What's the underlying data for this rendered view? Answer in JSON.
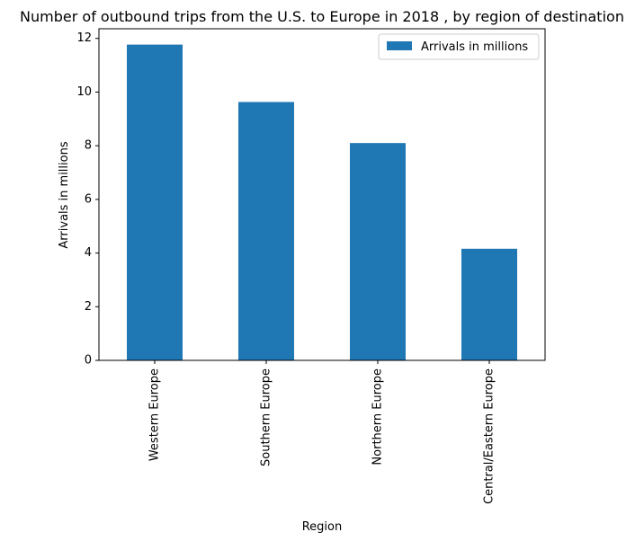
{
  "chart_data": {
    "type": "bar",
    "title": "Number of outbound trips from the U.S. to Europe in 2018 , by region of destination",
    "xlabel": "Region",
    "ylabel": "Arrivals in millions",
    "categories": [
      "Western Europe",
      "Southern Europe",
      "Northern Europe",
      "Central/Eastern Europe"
    ],
    "series": [
      {
        "name": "Arrivals in millions",
        "values": [
          11.77,
          9.63,
          8.1,
          4.16
        ],
        "color": "#1f77b4"
      }
    ],
    "ylim": [
      0,
      12.36
    ],
    "yticks": [
      0,
      2,
      4,
      6,
      8,
      10,
      12
    ],
    "grid": false,
    "legend_position": "top-right"
  }
}
